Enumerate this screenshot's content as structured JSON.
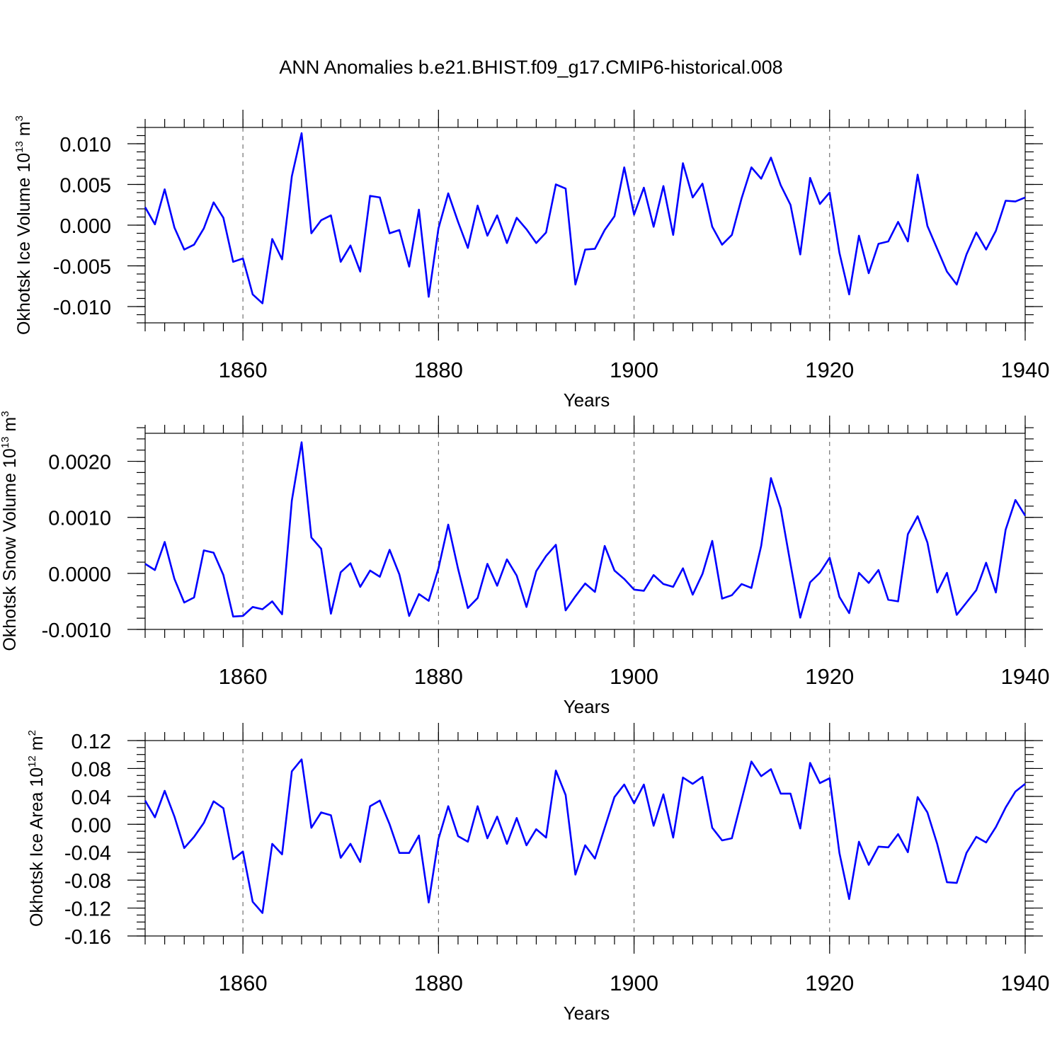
{
  "figure": {
    "title": "ANN Anomalies b.e21.BHIST.f09_g17.CMIP6-historical.008",
    "line_color": "#0000ff"
  },
  "chart_data": [
    {
      "type": "line",
      "xlabel": "Years",
      "ylabel_main": "Okhotsk Ice Volume 10",
      "ylabel_exp": "13",
      "ylabel_unit": " m",
      "ylabel_unit_exp": "3",
      "xlim": [
        1850,
        1940
      ],
      "ylim": [
        -0.012,
        0.012
      ],
      "xticks": [
        1860,
        1880,
        1900,
        1920,
        1940
      ],
      "yticks": [
        -0.01,
        -0.005,
        0.0,
        0.005,
        0.01
      ],
      "ytick_labels": [
        "-0.010",
        "-0.005",
        "0.000",
        "0.005",
        "0.010"
      ],
      "ytick_minor_step": 0.001,
      "grid_x": true,
      "x": [
        1850,
        1851,
        1852,
        1853,
        1854,
        1855,
        1856,
        1857,
        1858,
        1859,
        1860,
        1861,
        1862,
        1863,
        1864,
        1865,
        1866,
        1867,
        1868,
        1869,
        1870,
        1871,
        1872,
        1873,
        1874,
        1875,
        1876,
        1877,
        1878,
        1879,
        1880,
        1881,
        1882,
        1883,
        1884,
        1885,
        1886,
        1887,
        1888,
        1889,
        1890,
        1891,
        1892,
        1893,
        1894,
        1895,
        1896,
        1897,
        1898,
        1899,
        1900,
        1901,
        1902,
        1903,
        1904,
        1905,
        1906,
        1907,
        1908,
        1909,
        1910,
        1911,
        1912,
        1913,
        1914,
        1915,
        1916,
        1917,
        1918,
        1919,
        1920,
        1921,
        1922,
        1923,
        1924,
        1925,
        1926,
        1927,
        1928,
        1929,
        1930,
        1931,
        1932,
        1933,
        1934,
        1935,
        1936,
        1937,
        1938,
        1939,
        1940
      ],
      "y": [
        0.0022,
        0.0001,
        0.0044,
        -0.0003,
        -0.003,
        -0.0024,
        -0.0004,
        0.0028,
        0.0009,
        -0.0045,
        -0.0041,
        -0.0085,
        -0.0096,
        -0.0017,
        -0.0042,
        0.006,
        0.0113,
        -0.001,
        0.0006,
        0.0012,
        -0.0045,
        -0.0025,
        -0.0057,
        0.0036,
        0.0034,
        -0.001,
        -0.0006,
        -0.0051,
        0.0019,
        -0.0088,
        -0.0004,
        0.0039,
        0.0004,
        -0.0028,
        0.0024,
        -0.0013,
        0.0012,
        -0.0022,
        0.0009,
        -0.0005,
        -0.0022,
        -0.0009,
        0.005,
        0.0045,
        -0.0073,
        -0.003,
        -0.0029,
        -0.0006,
        0.0011,
        0.0071,
        0.0013,
        0.0046,
        -0.0002,
        0.0048,
        -0.0012,
        0.0076,
        0.0034,
        0.0051,
        -0.0002,
        -0.0024,
        -0.0012,
        0.0033,
        0.0071,
        0.0057,
        0.0083,
        0.0049,
        0.0025,
        -0.0036,
        0.0058,
        0.0026,
        0.004,
        -0.0034,
        -0.0085,
        -0.0013,
        -0.0059,
        -0.0023,
        -0.002,
        0.0004,
        -0.002,
        0.0062,
        -0.0001,
        -0.0029,
        -0.0057,
        -0.0073,
        -0.0036,
        -0.0009,
        -0.003,
        -0.0007,
        0.003,
        0.0029,
        0.0034
      ]
    },
    {
      "type": "line",
      "xlabel": "Years",
      "ylabel_main": "Okhotsk Snow Volume 10",
      "ylabel_exp": "13",
      "ylabel_unit": " m",
      "ylabel_unit_exp": "3",
      "xlim": [
        1850,
        1940
      ],
      "ylim": [
        -0.001,
        0.0025
      ],
      "xticks": [
        1860,
        1880,
        1900,
        1920,
        1940
      ],
      "yticks": [
        -0.001,
        0.0,
        0.001,
        0.002
      ],
      "ytick_labels": [
        "-0.0010",
        "0.0000",
        "0.0010",
        "0.0020"
      ],
      "ytick_minor_step": 0.0002,
      "grid_x": true,
      "x": [
        1850,
        1851,
        1852,
        1853,
        1854,
        1855,
        1856,
        1857,
        1858,
        1859,
        1860,
        1861,
        1862,
        1863,
        1864,
        1865,
        1866,
        1867,
        1868,
        1869,
        1870,
        1871,
        1872,
        1873,
        1874,
        1875,
        1876,
        1877,
        1878,
        1879,
        1880,
        1881,
        1882,
        1883,
        1884,
        1885,
        1886,
        1887,
        1888,
        1889,
        1890,
        1891,
        1892,
        1893,
        1894,
        1895,
        1896,
        1897,
        1898,
        1899,
        1900,
        1901,
        1902,
        1903,
        1904,
        1905,
        1906,
        1907,
        1908,
        1909,
        1910,
        1911,
        1912,
        1913,
        1914,
        1915,
        1916,
        1917,
        1918,
        1919,
        1920,
        1921,
        1922,
        1923,
        1924,
        1925,
        1926,
        1927,
        1928,
        1929,
        1930,
        1931,
        1932,
        1933,
        1934,
        1935,
        1936,
        1937,
        1938,
        1939,
        1940
      ],
      "y": [
        0.00017,
        6e-05,
        0.00056,
        -0.0001,
        -0.00052,
        -0.00043,
        0.00041,
        0.00037,
        -3e-05,
        -0.00077,
        -0.00076,
        -0.0006,
        -0.00064,
        -0.0005,
        -0.00073,
        0.0013,
        0.00234,
        0.00064,
        0.00044,
        -0.00072,
        2e-05,
        0.00018,
        -0.00024,
        5e-05,
        -6e-05,
        0.00042,
        -2e-05,
        -0.00076,
        -0.00037,
        -0.00049,
        9e-05,
        0.00087,
        8e-05,
        -0.00062,
        -0.00044,
        0.00017,
        -0.00022,
        0.00025,
        -4e-05,
        -0.0006,
        4e-05,
        0.00031,
        0.00051,
        -0.00066,
        -0.00041,
        -0.00018,
        -0.00033,
        0.00049,
        5e-05,
        -0.0001,
        -0.00029,
        -0.00031,
        -3e-05,
        -0.00019,
        -0.00024,
        9e-05,
        -0.00038,
        -1e-05,
        0.00058,
        -0.00045,
        -0.00039,
        -0.00019,
        -0.00026,
        0.00049,
        0.0017,
        0.00116,
        0.00017,
        -0.00079,
        -0.00016,
        1e-05,
        0.00028,
        -0.00042,
        -0.00071,
        1e-05,
        -0.00017,
        6e-05,
        -0.00047,
        -0.0005,
        0.0007,
        0.00102,
        0.00055,
        -0.00034,
        1e-05,
        -0.00074,
        -0.00052,
        -0.0003,
        0.00019,
        -0.00034,
        0.00078,
        0.00131,
        0.00103
      ]
    },
    {
      "type": "line",
      "xlabel": "Years",
      "ylabel_main": "Okhotsk Ice Area 10",
      "ylabel_exp": "12",
      "ylabel_unit": " m",
      "ylabel_unit_exp": "2",
      "xlim": [
        1850,
        1940
      ],
      "ylim": [
        -0.16,
        0.12
      ],
      "xticks": [
        1860,
        1880,
        1900,
        1920,
        1940
      ],
      "yticks": [
        -0.16,
        -0.12,
        -0.08,
        -0.04,
        0.0,
        0.04,
        0.08,
        0.12
      ],
      "ytick_labels": [
        "-0.16",
        "-0.12",
        "-0.08",
        "-0.04",
        "0.00",
        "0.04",
        "0.08",
        "0.12"
      ],
      "ytick_minor_step": 0.01,
      "grid_x": true,
      "x": [
        1850,
        1851,
        1852,
        1853,
        1854,
        1855,
        1856,
        1857,
        1858,
        1859,
        1860,
        1861,
        1862,
        1863,
        1864,
        1865,
        1866,
        1867,
        1868,
        1869,
        1870,
        1871,
        1872,
        1873,
        1874,
        1875,
        1876,
        1877,
        1878,
        1879,
        1880,
        1881,
        1882,
        1883,
        1884,
        1885,
        1886,
        1887,
        1888,
        1889,
        1890,
        1891,
        1892,
        1893,
        1894,
        1895,
        1896,
        1897,
        1898,
        1899,
        1900,
        1901,
        1902,
        1903,
        1904,
        1905,
        1906,
        1907,
        1908,
        1909,
        1910,
        1911,
        1912,
        1913,
        1914,
        1915,
        1916,
        1917,
        1918,
        1919,
        1920,
        1921,
        1922,
        1923,
        1924,
        1925,
        1926,
        1927,
        1928,
        1929,
        1930,
        1931,
        1932,
        1933,
        1934,
        1935,
        1936,
        1937,
        1938,
        1939,
        1940
      ],
      "y": [
        0.034,
        0.01,
        0.048,
        0.011,
        -0.034,
        -0.018,
        0.002,
        0.033,
        0.023,
        -0.05,
        -0.039,
        -0.111,
        -0.127,
        -0.028,
        -0.043,
        0.076,
        0.093,
        -0.005,
        0.017,
        0.013,
        -0.048,
        -0.028,
        -0.054,
        0.026,
        0.034,
        0.0,
        -0.041,
        -0.041,
        -0.016,
        -0.112,
        -0.021,
        0.026,
        -0.017,
        -0.025,
        0.026,
        -0.02,
        0.011,
        -0.028,
        0.009,
        -0.03,
        -0.007,
        -0.019,
        0.077,
        0.042,
        -0.072,
        -0.03,
        -0.049,
        -0.005,
        0.039,
        0.057,
        0.03,
        0.057,
        -0.002,
        0.043,
        -0.019,
        0.067,
        0.058,
        0.068,
        -0.005,
        -0.023,
        -0.02,
        0.035,
        0.09,
        0.069,
        0.079,
        0.044,
        0.044,
        -0.006,
        0.088,
        0.059,
        0.066,
        -0.041,
        -0.107,
        -0.025,
        -0.058,
        -0.032,
        -0.033,
        -0.014,
        -0.04,
        0.039,
        0.017,
        -0.028,
        -0.083,
        -0.084,
        -0.041,
        -0.018,
        -0.026,
        -0.004,
        0.024,
        0.047,
        0.058
      ]
    }
  ]
}
